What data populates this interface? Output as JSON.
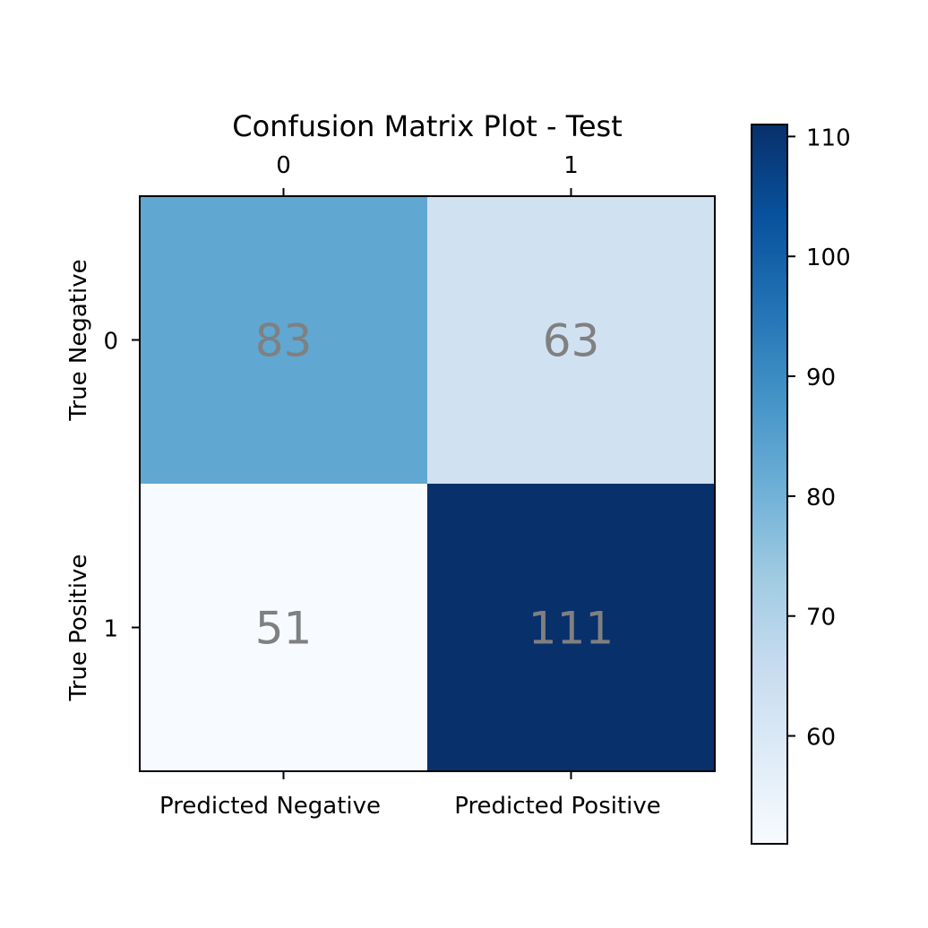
{
  "chart_data": {
    "type": "heatmap",
    "title": "Confusion Matrix Plot - Test",
    "x_top_ticks": [
      "0",
      "1"
    ],
    "x_bottom_ticks": [
      "Predicted Negative",
      "Predicted Positive"
    ],
    "y_ticks": [
      "0",
      "1"
    ],
    "y_row_labels": [
      "True Negative",
      "True Positive"
    ],
    "matrix": [
      [
        83,
        63
      ],
      [
        51,
        111
      ]
    ],
    "colormap": "Blues",
    "value_text_color": "#808080",
    "colorbar": {
      "min": 51,
      "max": 111,
      "ticks": [
        60,
        70,
        80,
        90,
        100,
        110
      ]
    }
  }
}
